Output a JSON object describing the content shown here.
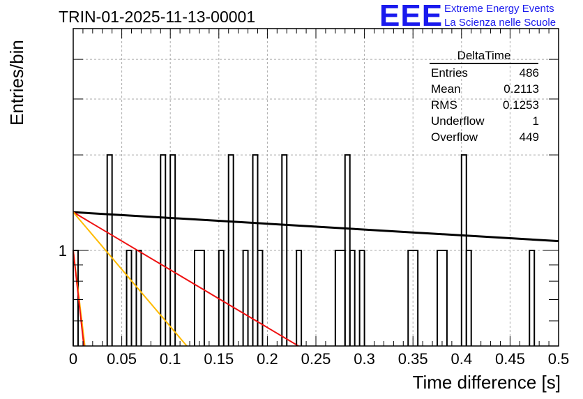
{
  "chart_data": {
    "type": "histogram",
    "title": "TRIN-01-2025-11-13-00001",
    "xlabel": "Time difference [s]",
    "ylabel": "Entries/bin",
    "xlim": [
      0,
      0.5
    ],
    "yscale": "log",
    "x_ticks": [
      "0",
      "0.05",
      "0.1",
      "0.15",
      "0.2",
      "0.25",
      "0.3",
      "0.35",
      "0.4",
      "0.45",
      "0.5"
    ],
    "y_ticks": [
      "1"
    ],
    "bin_width": 0.005,
    "bins": [
      {
        "x0": 0.0,
        "x1": 0.005,
        "count": 1
      },
      {
        "x0": 0.035,
        "x1": 0.04,
        "count": 2
      },
      {
        "x0": 0.055,
        "x1": 0.06,
        "count": 1
      },
      {
        "x0": 0.065,
        "x1": 0.07,
        "count": 1
      },
      {
        "x0": 0.09,
        "x1": 0.095,
        "count": 2
      },
      {
        "x0": 0.1,
        "x1": 0.105,
        "count": 2
      },
      {
        "x0": 0.125,
        "x1": 0.135,
        "count": 1
      },
      {
        "x0": 0.15,
        "x1": 0.155,
        "count": 1
      },
      {
        "x0": 0.16,
        "x1": 0.165,
        "count": 2
      },
      {
        "x0": 0.175,
        "x1": 0.18,
        "count": 1
      },
      {
        "x0": 0.185,
        "x1": 0.19,
        "count": 2
      },
      {
        "x0": 0.19,
        "x1": 0.195,
        "count": 1
      },
      {
        "x0": 0.215,
        "x1": 0.22,
        "count": 2
      },
      {
        "x0": 0.23,
        "x1": 0.235,
        "count": 1
      },
      {
        "x0": 0.27,
        "x1": 0.28,
        "count": 1
      },
      {
        "x0": 0.28,
        "x1": 0.285,
        "count": 2
      },
      {
        "x0": 0.285,
        "x1": 0.29,
        "count": 1
      },
      {
        "x0": 0.295,
        "x1": 0.3,
        "count": 1
      },
      {
        "x0": 0.345,
        "x1": 0.355,
        "count": 1
      },
      {
        "x0": 0.375,
        "x1": 0.385,
        "count": 1
      },
      {
        "x0": 0.4,
        "x1": 0.405,
        "count": 2
      },
      {
        "x0": 0.405,
        "x1": 0.41,
        "count": 1
      },
      {
        "x0": 0.47,
        "x1": 0.475,
        "count": 1
      }
    ],
    "ymin_count": 0.5,
    "ymax_count": 5,
    "fit_lines": [
      {
        "name": "fit-black",
        "color": "#000000",
        "points": [
          [
            0,
            1.32
          ],
          [
            0.5,
            1.07
          ]
        ]
      },
      {
        "name": "fit-red",
        "color": "#ee1111",
        "points": [
          [
            0,
            1.32
          ],
          [
            0.232,
            0.5
          ]
        ]
      },
      {
        "name": "fit-orange",
        "color": "#ffbb00",
        "points": [
          [
            0,
            1.32
          ],
          [
            0.117,
            0.5
          ]
        ]
      },
      {
        "name": "fit-orange-short",
        "color": "#ffbb00",
        "points": [
          [
            0,
            1.0
          ],
          [
            0.012,
            0.5
          ]
        ]
      },
      {
        "name": "fit-red-short",
        "color": "#ee1111",
        "points": [
          [
            0,
            1.0
          ],
          [
            0.011,
            0.5
          ]
        ]
      }
    ]
  },
  "stats": {
    "name": "DeltaTime",
    "rows": [
      {
        "label": "Entries",
        "value": "486"
      },
      {
        "label": "Mean",
        "value": "0.2113"
      },
      {
        "label": "RMS",
        "value": "0.1253"
      },
      {
        "label": "Underflow",
        "value": "1"
      },
      {
        "label": "Overflow",
        "value": "449"
      }
    ]
  },
  "logo": {
    "text": "EEE",
    "line1": "Extreme Energy Events",
    "line2": "La Scienza nelle Scuole"
  }
}
